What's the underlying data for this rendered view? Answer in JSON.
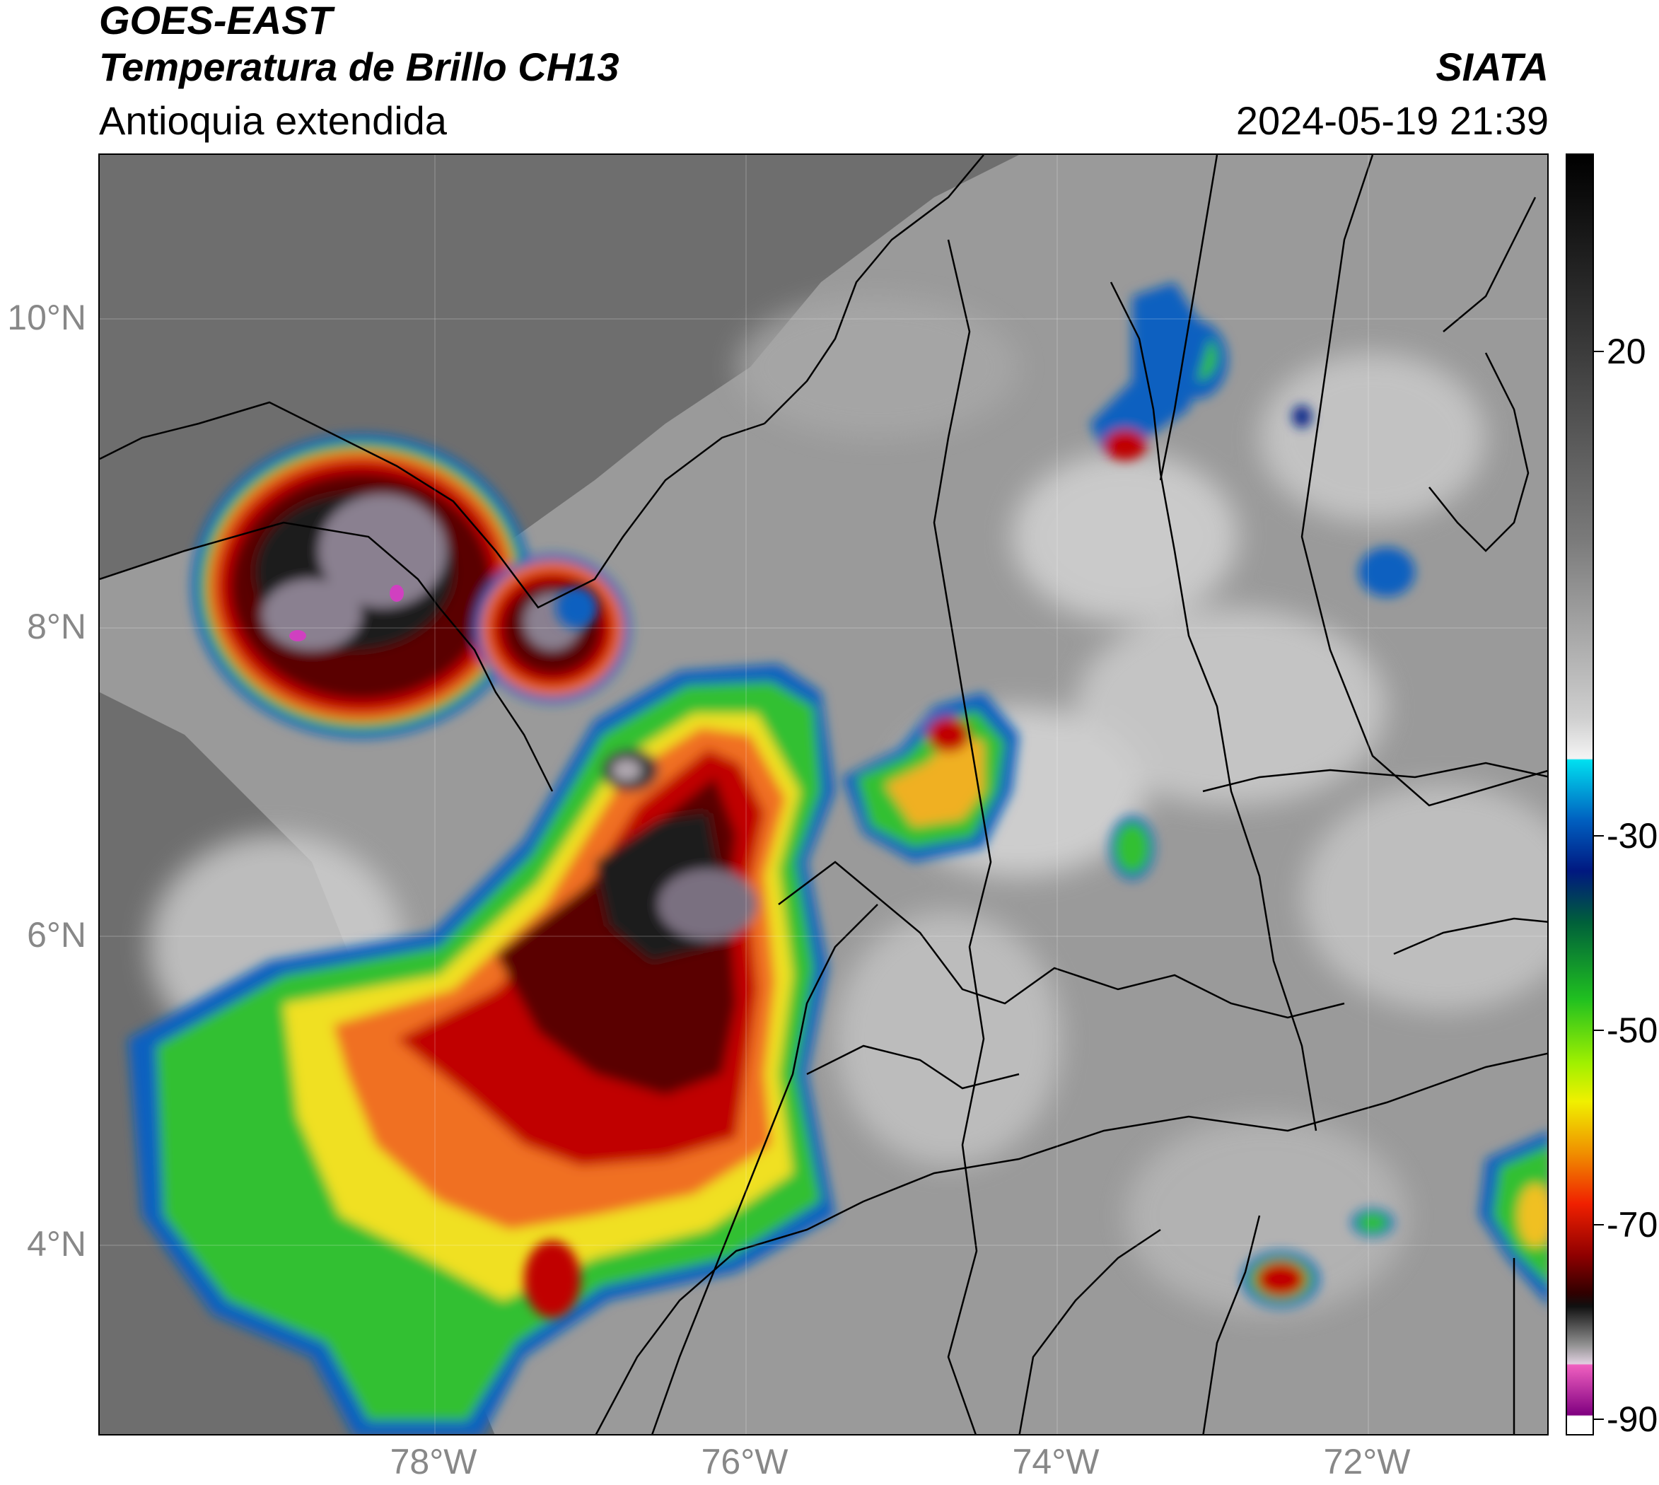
{
  "header": {
    "satellite": "GOES-EAST",
    "product": "Temperatura de Brillo CH13",
    "region": "Antioquia extendida",
    "agency": "SIATA",
    "timestamp": "2024-05-19 21:39"
  },
  "map": {
    "lat_ticks": [
      "10°N",
      "8°N",
      "6°N",
      "4°N"
    ],
    "lon_ticks": [
      "78°W",
      "76°W",
      "74°W",
      "72°W"
    ]
  },
  "colorbar": {
    "labels": [
      "20",
      "-30",
      "-50",
      "-70",
      "-90"
    ]
  },
  "colors": {
    "ocean": "#6f6f6f",
    "land": "#9a9a9a",
    "cloud_warm": "#d8d8d8",
    "cold_cloud_blue": "#1060c0",
    "cold_cloud_green": "#30c030",
    "cold_cloud_yellow": "#f0e020",
    "cold_cloud_orange": "#f07020",
    "cold_cloud_red": "#c00000",
    "cold_cloud_darkred": "#5a0000",
    "cold_cloud_black": "#1a1a1a",
    "cold_cloud_magenta": "#d040c0"
  }
}
